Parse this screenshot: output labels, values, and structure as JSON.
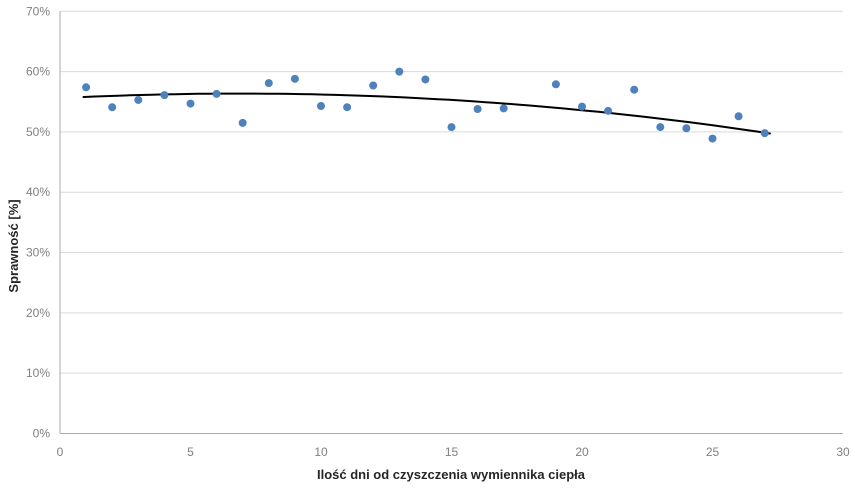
{
  "chart_data": {
    "type": "scatter",
    "title": "",
    "xlabel": "Ilość dni od czyszczenia wymiennika ciepła",
    "ylabel": "Sprawność [%]",
    "xlim": [
      0,
      30
    ],
    "ylim": [
      0,
      70
    ],
    "grid": true,
    "legend": false,
    "x_ticks": [
      {
        "value": 0,
        "label": "0"
      },
      {
        "value": 5,
        "label": "5"
      },
      {
        "value": 10,
        "label": "10"
      },
      {
        "value": 15,
        "label": "15"
      },
      {
        "value": 20,
        "label": "20"
      },
      {
        "value": 25,
        "label": "25"
      },
      {
        "value": 30,
        "label": "30"
      }
    ],
    "y_ticks": [
      {
        "value": 0,
        "label": "0%"
      },
      {
        "value": 10,
        "label": "10%"
      },
      {
        "value": 20,
        "label": "20%"
      },
      {
        "value": 30,
        "label": "30%"
      },
      {
        "value": 40,
        "label": "40%"
      },
      {
        "value": 50,
        "label": "50%"
      },
      {
        "value": 60,
        "label": "60%"
      },
      {
        "value": 70,
        "label": "70%"
      }
    ],
    "series": [
      {
        "name": "Sprawność",
        "marker": "circle",
        "color": "#4F81BD",
        "points": [
          {
            "x": 1,
            "y": 57.4
          },
          {
            "x": 2,
            "y": 54.1
          },
          {
            "x": 3,
            "y": 55.3
          },
          {
            "x": 4,
            "y": 56.1
          },
          {
            "x": 5,
            "y": 54.7
          },
          {
            "x": 6,
            "y": 56.3
          },
          {
            "x": 7,
            "y": 51.5
          },
          {
            "x": 8,
            "y": 58.1
          },
          {
            "x": 9,
            "y": 58.8
          },
          {
            "x": 10,
            "y": 54.3
          },
          {
            "x": 11,
            "y": 54.1
          },
          {
            "x": 12,
            "y": 57.7
          },
          {
            "x": 13,
            "y": 60.0
          },
          {
            "x": 14,
            "y": 58.7
          },
          {
            "x": 15,
            "y": 50.8
          },
          {
            "x": 16,
            "y": 53.8
          },
          {
            "x": 17,
            "y": 53.9
          },
          {
            "x": 19,
            "y": 57.9
          },
          {
            "x": 20,
            "y": 54.2
          },
          {
            "x": 21,
            "y": 53.5
          },
          {
            "x": 22,
            "y": 57.0
          },
          {
            "x": 23,
            "y": 50.8
          },
          {
            "x": 24,
            "y": 50.6
          },
          {
            "x": 25,
            "y": 48.9
          },
          {
            "x": 26,
            "y": 52.6
          },
          {
            "x": 27,
            "y": 49.8
          }
        ]
      }
    ],
    "trendline": {
      "type": "polynomial",
      "order": 2,
      "coefficients": {
        "a": 55.6,
        "b": 0.22,
        "c": -0.016
      },
      "x_start": 0.9,
      "x_end": 27.2,
      "color": "#000000"
    },
    "colors": {
      "marker": "#4F81BD",
      "trend": "#000000",
      "gridline": "#D9D9D9",
      "axis_line": "#ABABAB",
      "tick_label": "#808080",
      "axis_title": "#262626",
      "background": "#FFFFFF"
    }
  }
}
